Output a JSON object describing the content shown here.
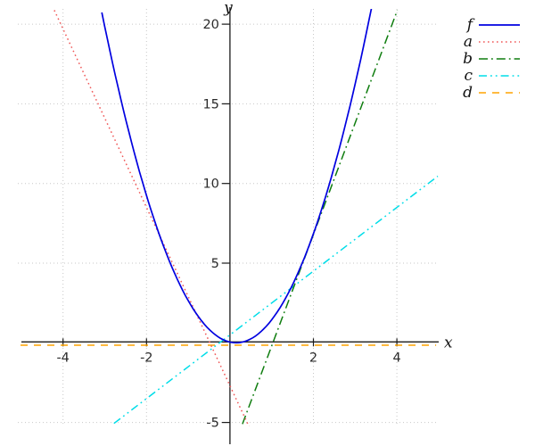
{
  "chart_data": {
    "type": "line",
    "title": "",
    "xlabel": "x",
    "ylabel": "y",
    "x_ticks": [
      -4,
      -2,
      2,
      4
    ],
    "x_tick_labels": [
      "-4",
      "-2",
      "2",
      "4"
    ],
    "y_ticks": [
      20,
      15,
      10,
      5,
      -5
    ],
    "y_tick_labels": [
      "20",
      "15",
      "10",
      "5",
      "-5"
    ],
    "x_range": [
      -5.05,
      5.05
    ],
    "y_range": [
      -5.6,
      20.9
    ],
    "grid": true,
    "grid_style": "dotted light gray at labeled ticks",
    "legend_position": "top-right",
    "legend_entries": [
      "f",
      "a",
      "b",
      "c",
      "d"
    ],
    "series": [
      {
        "name": "f",
        "kind": "parabola",
        "color": "#0000e0",
        "dash": "solid",
        "width": 1.7,
        "equation": "f(x) ≈ 2x² (vertex at origin)",
        "params": {
          "a": 2,
          "h": 0.15,
          "k": 0
        },
        "x_domain": [
          -3.07,
          3.39
        ],
        "points": [
          [
            -2.91,
            20
          ],
          [
            -2.51,
            15
          ],
          [
            -2.04,
            10
          ],
          [
            -1.42,
            5
          ],
          [
            0.15,
            0
          ],
          [
            2.45,
            10
          ],
          [
            3.35,
            20
          ]
        ]
      },
      {
        "name": "a",
        "kind": "linear",
        "color": "#f05858",
        "dash": "dotted",
        "width": 1.5,
        "equation": "a(x) ≈ -5.6x - 2.7",
        "params": {
          "slope": -5.6,
          "intercept": -2.7
        },
        "x_domain": [
          -4.21,
          0.5
        ],
        "points": [
          [
            -4.05,
            20
          ],
          [
            -3.16,
            15
          ],
          [
            -0.48,
            0
          ],
          [
            0.5,
            -5.5
          ]
        ]
      },
      {
        "name": "b",
        "kind": "linear",
        "color": "#0f7d0f",
        "dash": "dash-dot",
        "width": 1.5,
        "equation": "b(x) ≈ 7x - 7.2",
        "params": {
          "slope": 7,
          "intercept": -7.2
        },
        "x_domain": [
          0.3,
          4.01
        ],
        "points": [
          [
            1.03,
            0
          ],
          [
            2.46,
            10
          ],
          [
            3.89,
            20
          ]
        ]
      },
      {
        "name": "c",
        "kind": "linear",
        "color": "#00dde8",
        "dash": "dash-dot-dot",
        "width": 1.5,
        "equation": "c(x) ≈ 2x + 0.5",
        "params": {
          "slope": 2,
          "intercept": 0.5
        },
        "x_domain": [
          -2.78,
          4.98
        ],
        "points": [
          [
            -2.75,
            -5
          ],
          [
            -0.25,
            0
          ],
          [
            1.43,
            3.4
          ],
          [
            4.75,
            10
          ]
        ]
      },
      {
        "name": "d",
        "kind": "constant",
        "color": "#ffa400",
        "dash": "dashed",
        "width": 1.5,
        "equation": "d(x) ≈ -0.15 (constant, hugs x-axis)",
        "params": {
          "value": -0.15
        },
        "x_domain": [
          -5.02,
          4.94
        ],
        "points": [
          [
            -5,
            -0.15
          ],
          [
            5,
            -0.15
          ]
        ]
      }
    ]
  }
}
